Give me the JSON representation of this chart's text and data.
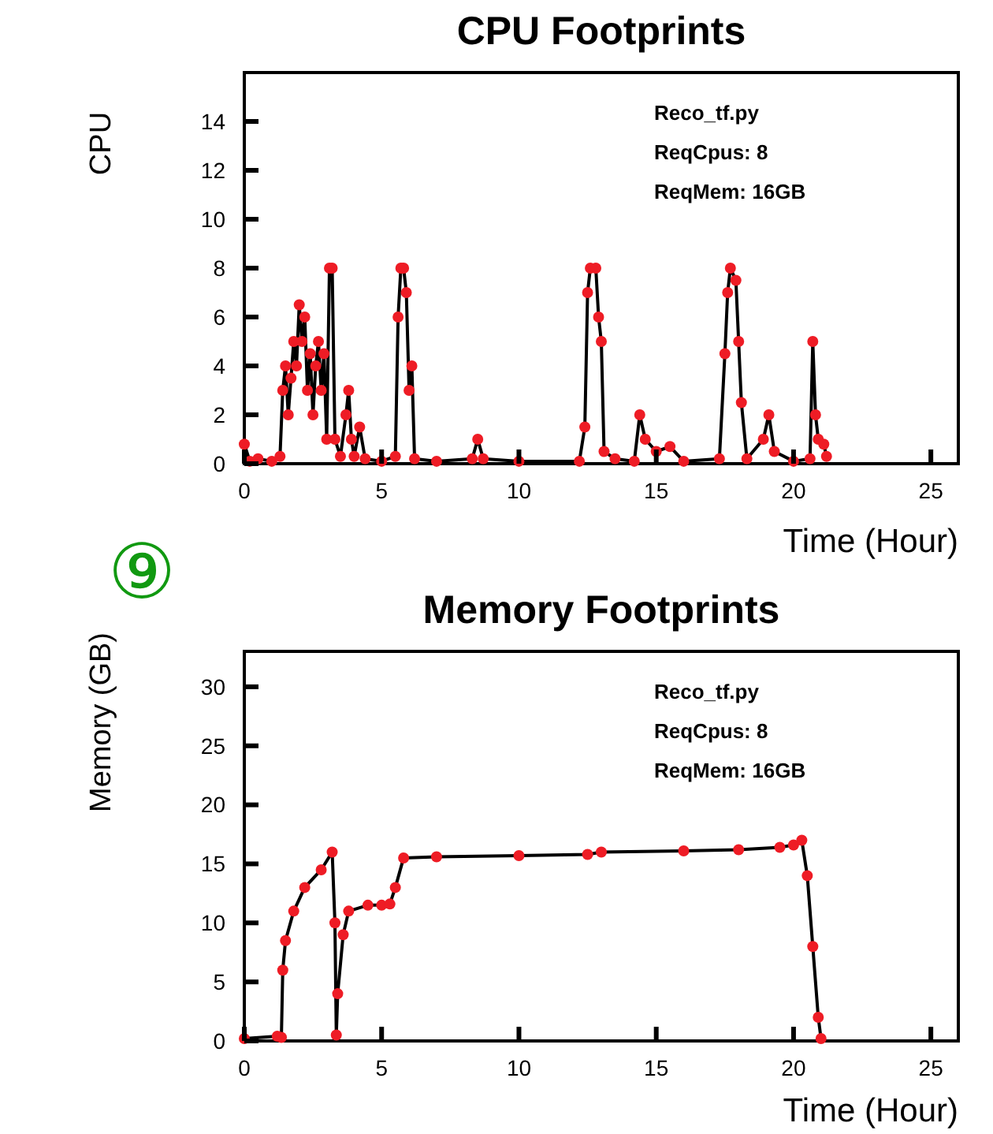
{
  "chart_data": [
    {
      "type": "line",
      "title": "CPU Footprints",
      "xlabel": "Time (Hour)",
      "ylabel": "CPU",
      "xlim": [
        0,
        26
      ],
      "xticks": [
        0,
        5,
        10,
        15,
        20,
        25
      ],
      "ylim": [
        0,
        16
      ],
      "yticks": [
        0,
        2,
        4,
        6,
        8,
        10,
        12,
        14
      ],
      "annotations": [
        "Reco_tf.py",
        "ReqCpus: 8",
        "ReqMem: 16GB",
        "⑨"
      ],
      "series": [
        {
          "color": "#000000",
          "marker": "none",
          "x": [
            0,
            0.2,
            0.5,
            1.0,
            1.3,
            1.4,
            1.5,
            1.6,
            1.7,
            1.8,
            1.9,
            2.0,
            2.1,
            2.2,
            2.3,
            2.4,
            2.5,
            2.6,
            2.7,
            2.8,
            2.9,
            3.0,
            3.1,
            3.2,
            3.3,
            3.5,
            3.7,
            3.8,
            3.9,
            4.0,
            4.2,
            4.4,
            5.0,
            5.5,
            5.6,
            5.7,
            5.8,
            5.9,
            6.0,
            6.1,
            6.2,
            7,
            8.3,
            8.5,
            8.7,
            10,
            12.2,
            12.4,
            12.5,
            12.6,
            12.8,
            12.9,
            13.0,
            13.1,
            13.5,
            14.2,
            14.4,
            14.6,
            15.0,
            15.5,
            16,
            17.3,
            17.5,
            17.6,
            17.7,
            17.9,
            18.0,
            18.1,
            18.3,
            18.9,
            19.1,
            19.3,
            20,
            20.6,
            20.7,
            20.8,
            20.9,
            21.1,
            21.2
          ],
          "values": [
            0.8,
            0.1,
            0.2,
            0.1,
            0.3,
            3,
            4,
            2,
            3.5,
            5,
            4,
            6.5,
            5,
            6,
            3,
            4.5,
            2,
            4,
            5,
            3,
            4.5,
            1,
            8,
            8,
            1,
            0.3,
            2,
            3,
            1,
            0.3,
            1.5,
            0.2,
            0.1,
            0.3,
            6,
            8,
            8,
            7,
            3,
            4,
            0.2,
            0.1,
            0.2,
            1,
            0.2,
            0.1,
            0.1,
            1.5,
            7,
            8,
            8,
            6,
            5,
            0.5,
            0.2,
            0.1,
            2,
            1,
            0.5,
            0.7,
            0.1,
            0.2,
            4.5,
            7,
            8,
            7.5,
            5,
            2.5,
            0.2,
            1,
            2,
            0.5,
            0.1,
            0.2,
            5,
            2,
            1,
            0.8,
            0.3
          ]
        },
        {
          "type": "scatter",
          "marker": "circle",
          "color": "#ee1c25",
          "x": [
            0,
            0.2,
            0.5,
            1.0,
            1.3,
            1.4,
            1.5,
            1.6,
            1.7,
            1.8,
            1.9,
            2.0,
            2.1,
            2.2,
            2.3,
            2.4,
            2.5,
            2.6,
            2.7,
            2.8,
            2.9,
            3.0,
            3.1,
            3.2,
            3.3,
            3.5,
            3.7,
            3.8,
            3.9,
            4.0,
            4.2,
            4.4,
            5.0,
            5.5,
            5.6,
            5.7,
            5.8,
            5.9,
            6.0,
            6.1,
            6.2,
            7,
            8.3,
            8.5,
            8.7,
            10,
            12.2,
            12.4,
            12.5,
            12.6,
            12.8,
            12.9,
            13.0,
            13.1,
            13.5,
            14.2,
            14.4,
            14.6,
            15.0,
            15.5,
            16,
            17.3,
            17.5,
            17.6,
            17.7,
            17.9,
            18.0,
            18.1,
            18.3,
            18.9,
            19.1,
            19.3,
            20,
            20.6,
            20.7,
            20.8,
            20.9,
            21.1,
            21.2
          ],
          "values": [
            0.8,
            0.1,
            0.2,
            0.1,
            0.3,
            3,
            4,
            2,
            3.5,
            5,
            4,
            6.5,
            5,
            6,
            3,
            4.5,
            2,
            4,
            5,
            3,
            4.5,
            1,
            8,
            8,
            1,
            0.3,
            2,
            3,
            1,
            0.3,
            1.5,
            0.2,
            0.1,
            0.3,
            6,
            8,
            8,
            7,
            3,
            4,
            0.2,
            0.1,
            0.2,
            1,
            0.2,
            0.1,
            0.1,
            1.5,
            7,
            8,
            8,
            6,
            5,
            0.5,
            0.2,
            0.1,
            2,
            1,
            0.5,
            0.7,
            0.1,
            0.2,
            4.5,
            7,
            8,
            7.5,
            5,
            2.5,
            0.2,
            1,
            2,
            0.5,
            0.1,
            0.2,
            5,
            2,
            1,
            0.8,
            0.3
          ]
        }
      ]
    },
    {
      "type": "line",
      "title": "Memory Footprints",
      "xlabel": "Time (Hour)",
      "ylabel": "Memory (GB)",
      "xlim": [
        0,
        26
      ],
      "xticks": [
        0,
        5,
        10,
        15,
        20,
        25
      ],
      "ylim": [
        0,
        33
      ],
      "yticks": [
        0,
        5,
        10,
        15,
        20,
        25,
        30
      ],
      "annotations": [
        "Reco_tf.py",
        "ReqCpus: 8",
        "ReqMem: 16GB"
      ],
      "series": [
        {
          "color": "#000000",
          "marker": "none",
          "x": [
            0,
            1.2,
            1.35,
            1.4,
            1.5,
            1.8,
            2.2,
            2.8,
            3.2,
            3.3,
            3.35,
            3.4,
            3.6,
            3.8,
            4.5,
            5.0,
            5.3,
            5.5,
            5.8,
            7,
            10,
            12.5,
            13,
            16,
            18,
            19.5,
            20,
            20.3,
            20.5,
            20.7,
            20.9,
            21
          ],
          "values": [
            0.2,
            0.4,
            0.3,
            6,
            8.5,
            11,
            13,
            14.5,
            16,
            10,
            0.5,
            4,
            9,
            11,
            11.5,
            11.5,
            11.6,
            13,
            15.5,
            15.6,
            15.7,
            15.8,
            16,
            16.1,
            16.2,
            16.4,
            16.6,
            17,
            14,
            8,
            2,
            0.2
          ]
        },
        {
          "type": "scatter",
          "marker": "circle",
          "color": "#ee1c25",
          "x": [
            0,
            1.2,
            1.35,
            1.4,
            1.5,
            1.8,
            2.2,
            2.8,
            3.2,
            3.3,
            3.35,
            3.4,
            3.6,
            3.8,
            4.5,
            5.0,
            5.3,
            5.5,
            5.8,
            7,
            10,
            12.5,
            13,
            16,
            18,
            19.5,
            20,
            20.3,
            20.5,
            20.7,
            20.9,
            21
          ],
          "values": [
            0.2,
            0.4,
            0.3,
            6,
            8.5,
            11,
            13,
            14.5,
            16,
            10,
            0.5,
            4,
            9,
            11,
            11.5,
            11.5,
            11.6,
            13,
            15.5,
            15.6,
            15.7,
            15.8,
            16,
            16.1,
            16.2,
            16.4,
            16.6,
            17,
            14,
            8,
            2,
            0.2
          ]
        }
      ]
    }
  ]
}
